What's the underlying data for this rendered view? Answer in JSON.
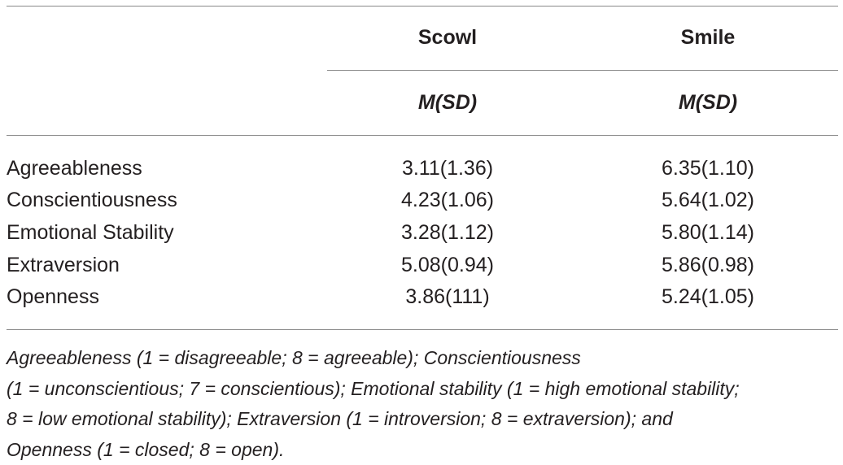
{
  "table": {
    "columns": [
      {
        "group": "Scowl",
        "stat": "M(SD)"
      },
      {
        "group": "Smile",
        "stat": "M(SD)"
      }
    ],
    "rows": [
      {
        "label": "Agreeableness",
        "scowl": "3.11(1.36)",
        "smile": "6.35(1.10)"
      },
      {
        "label": "Conscientiousness",
        "scowl": "4.23(1.06)",
        "smile": "5.64(1.02)"
      },
      {
        "label": "Emotional Stability",
        "scowl": "3.28(1.12)",
        "smile": "5.80(1.14)"
      },
      {
        "label": "Extraversion",
        "scowl": "5.08(0.94)",
        "smile": "5.86(0.98)"
      },
      {
        "label": "Openness",
        "scowl": "3.86(111)",
        "smile": "5.24(1.05)"
      }
    ]
  },
  "footnote": {
    "lines": [
      "Agreeableness (1 = disagreeable; 8 = agreeable); Conscientiousness",
      "(1 = unconscientious; 7 = conscientious); Emotional stability (1 = high emotional stability;",
      "8 = low emotional stability); Extraversion (1 = introversion; 8 = extraversion); and",
      "Openness (1 = closed; 8 = open)."
    ]
  }
}
